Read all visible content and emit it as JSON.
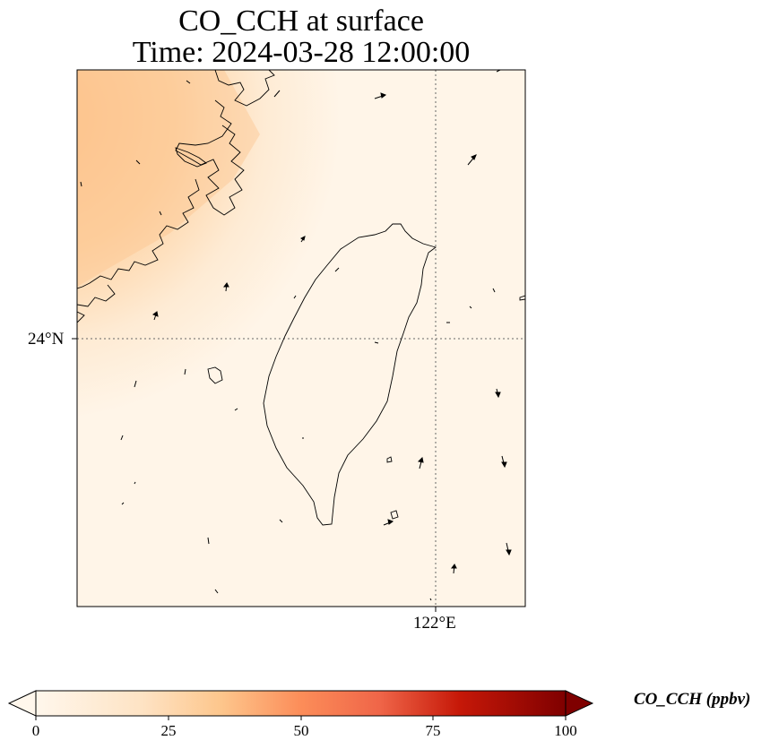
{
  "title_line1": "CO_CCH at surface",
  "title_line2": "Time: 2024-03-28 12:00:00",
  "axis": {
    "lat_label": "24°N",
    "lon_label": "122°E"
  },
  "colorbar": {
    "label": "CO_CCH (ppbv)",
    "min": 0,
    "max": 100,
    "ticks": [
      "0",
      "25",
      "50",
      "75",
      "100"
    ],
    "colormap": "OrRd",
    "extend": "both"
  },
  "field": {
    "variable": "CO_CCH",
    "level": "surface",
    "peak_value_northwest": 30,
    "background_value": 3
  },
  "features": [
    "coastlines",
    "wind-vectors",
    "gridlines-dotted"
  ]
}
